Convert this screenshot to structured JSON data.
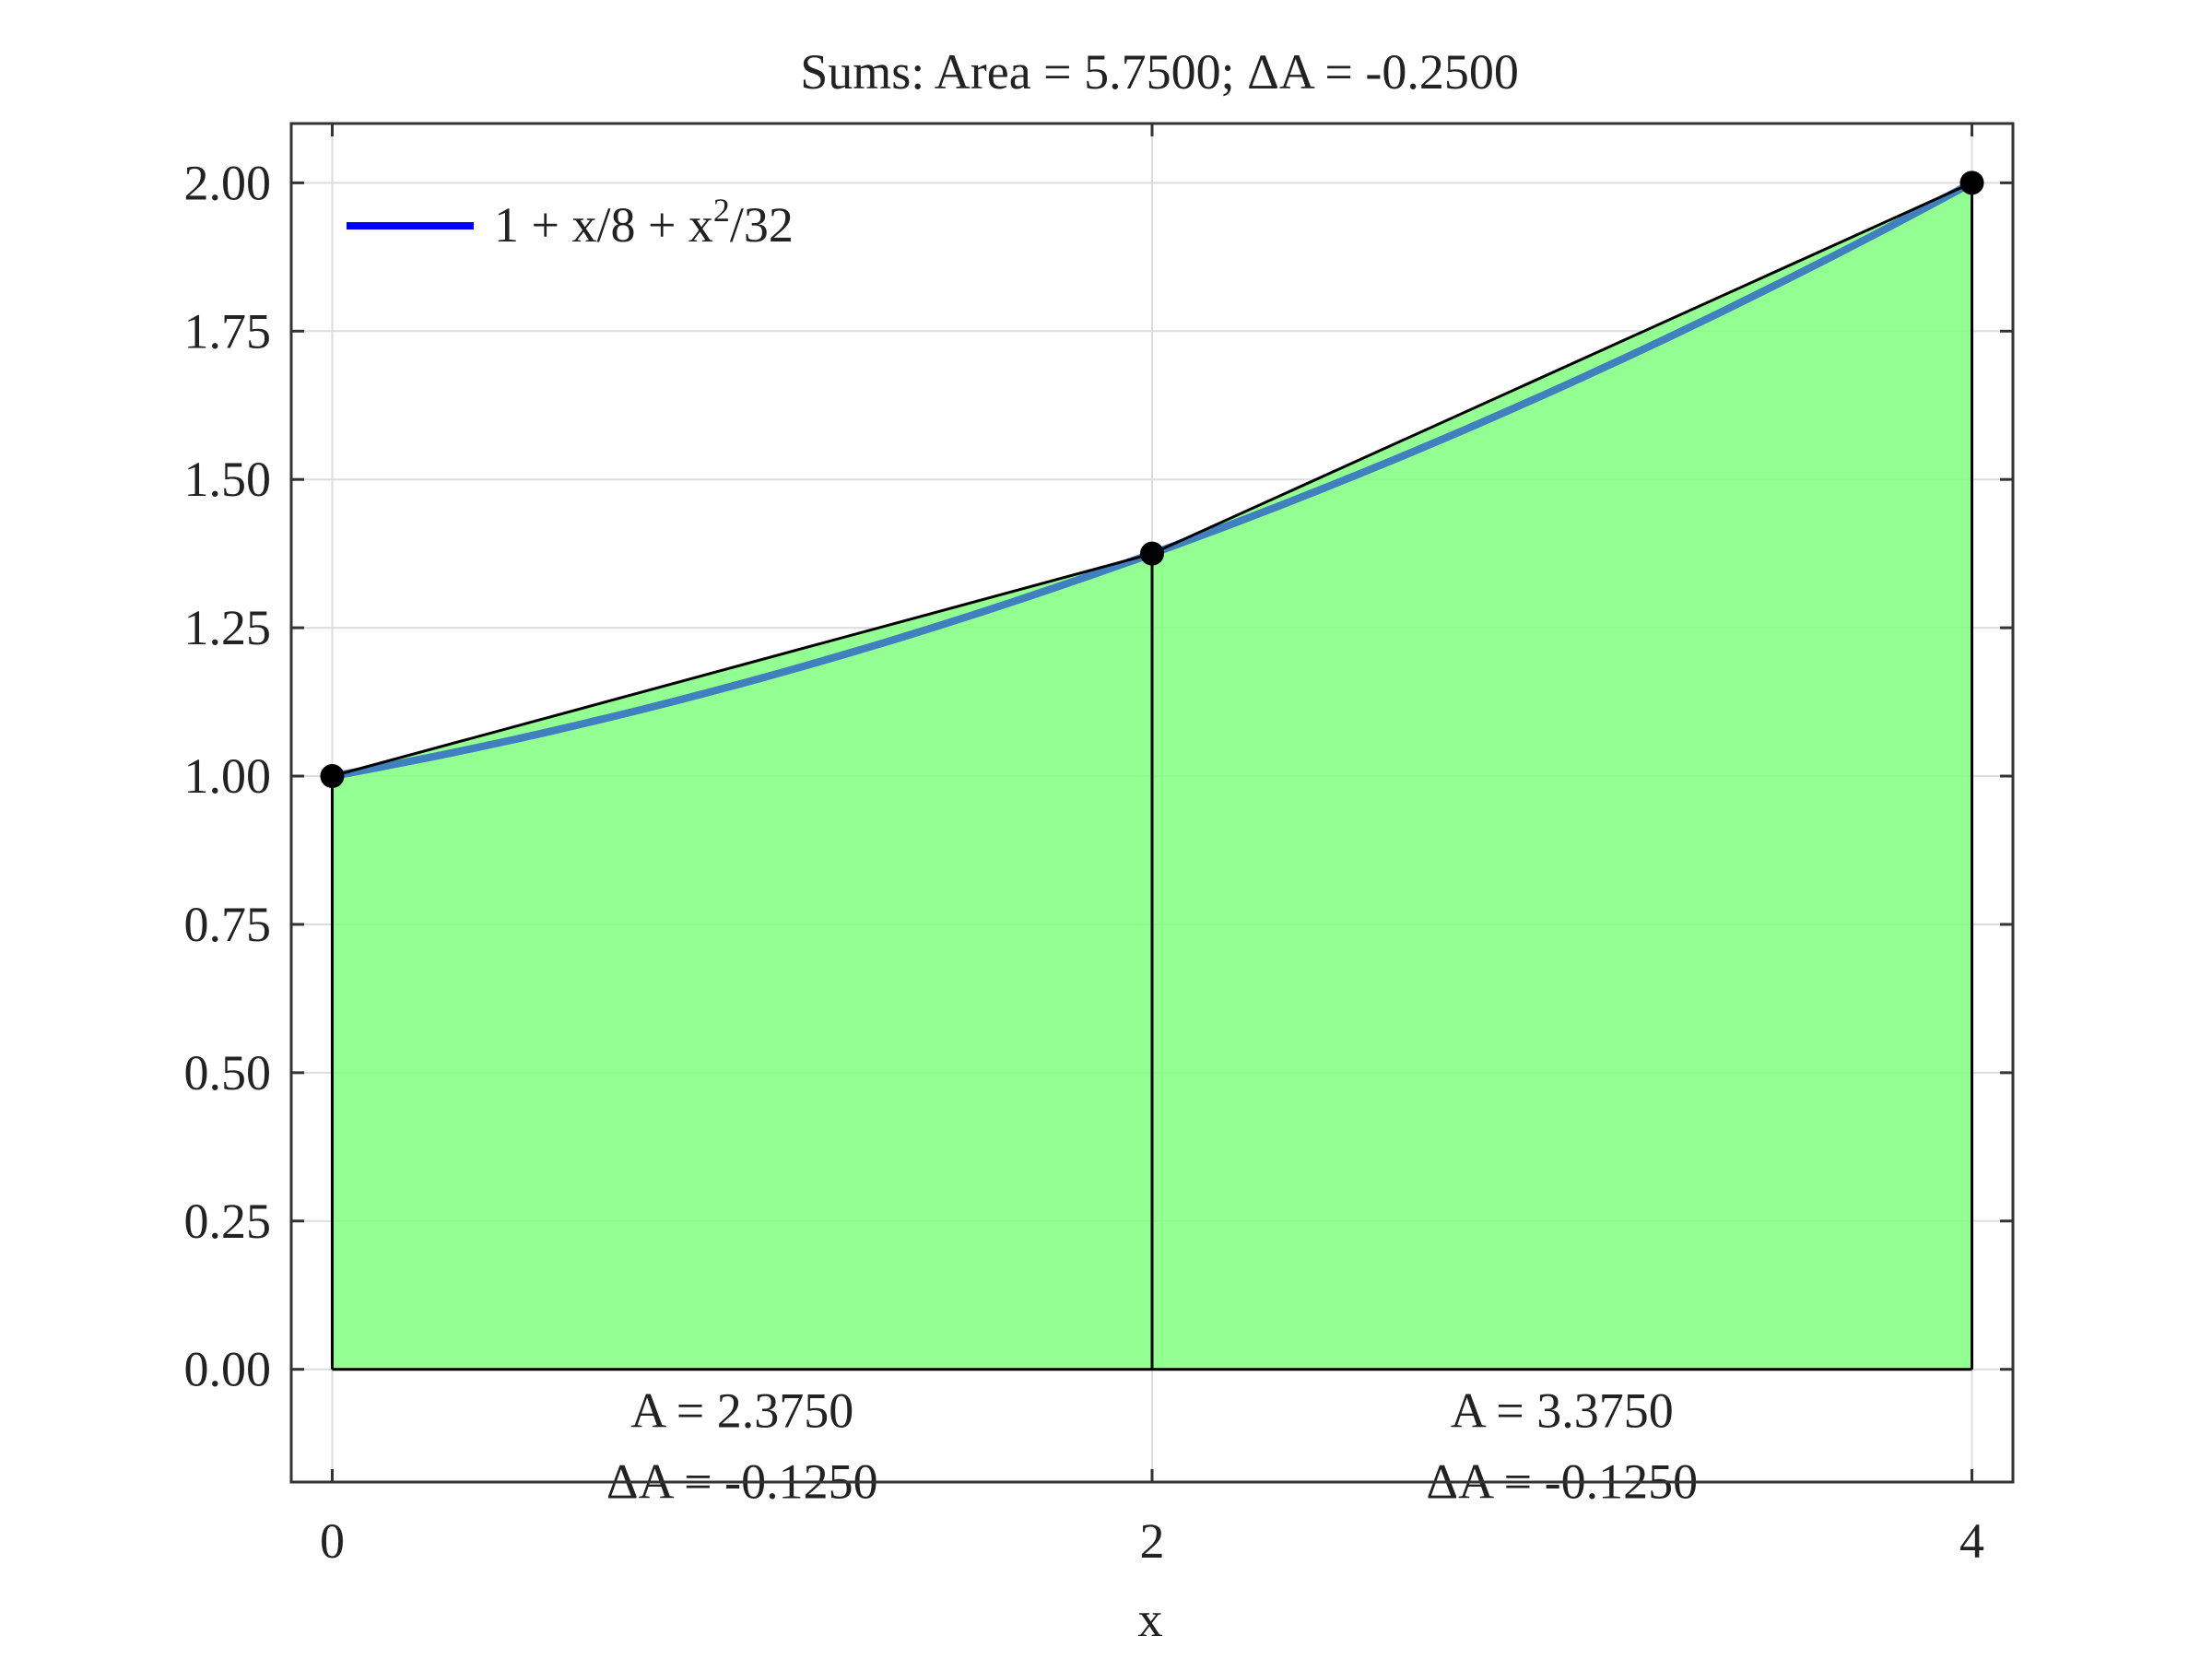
{
  "chart_data": {
    "type": "area",
    "title": "Sums: Area = 5.7500; ΔA = -0.2500",
    "xlabel": "x",
    "ylabel": "",
    "xlim": [
      -0.1,
      4.1
    ],
    "ylim": [
      -0.19,
      2.1
    ],
    "xticks": [
      0,
      2,
      4
    ],
    "yticks": [
      0.0,
      0.25,
      0.5,
      0.75,
      1.0,
      1.25,
      1.5,
      1.75,
      2.0
    ],
    "xtick_labels": [
      "0",
      "2",
      "4"
    ],
    "ytick_labels": [
      "0.00",
      "0.25",
      "0.50",
      "0.75",
      "1.00",
      "1.25",
      "1.50",
      "1.75",
      "2.00"
    ],
    "grid": true,
    "legend_position": "top-left",
    "series": [
      {
        "name": "1 + x/8 + x²/32",
        "kind": "curve",
        "color": "#0000ff",
        "x": [
          0,
          0.5,
          1,
          1.5,
          2,
          2.5,
          3,
          3.5,
          4
        ],
        "y": [
          1.0,
          1.0703,
          1.1563,
          1.2578,
          1.375,
          1.5078,
          1.6563,
          1.8203,
          2.0
        ]
      }
    ],
    "legend": {
      "label_main": "1 + x/8 + x",
      "label_sup": "2",
      "label_tail": "/32"
    },
    "trapezoids": {
      "x": [
        0,
        2,
        4
      ],
      "y": [
        1.0,
        1.375,
        2.0
      ],
      "fill_color": "#80ff80",
      "edge_color": "#000000"
    },
    "annotations": [
      {
        "x": 1,
        "area": "A = 2.3750",
        "delta": "ΔA = -0.1250"
      },
      {
        "x": 3,
        "area": "A = 3.3750",
        "delta": "ΔA = -0.1250"
      }
    ]
  }
}
